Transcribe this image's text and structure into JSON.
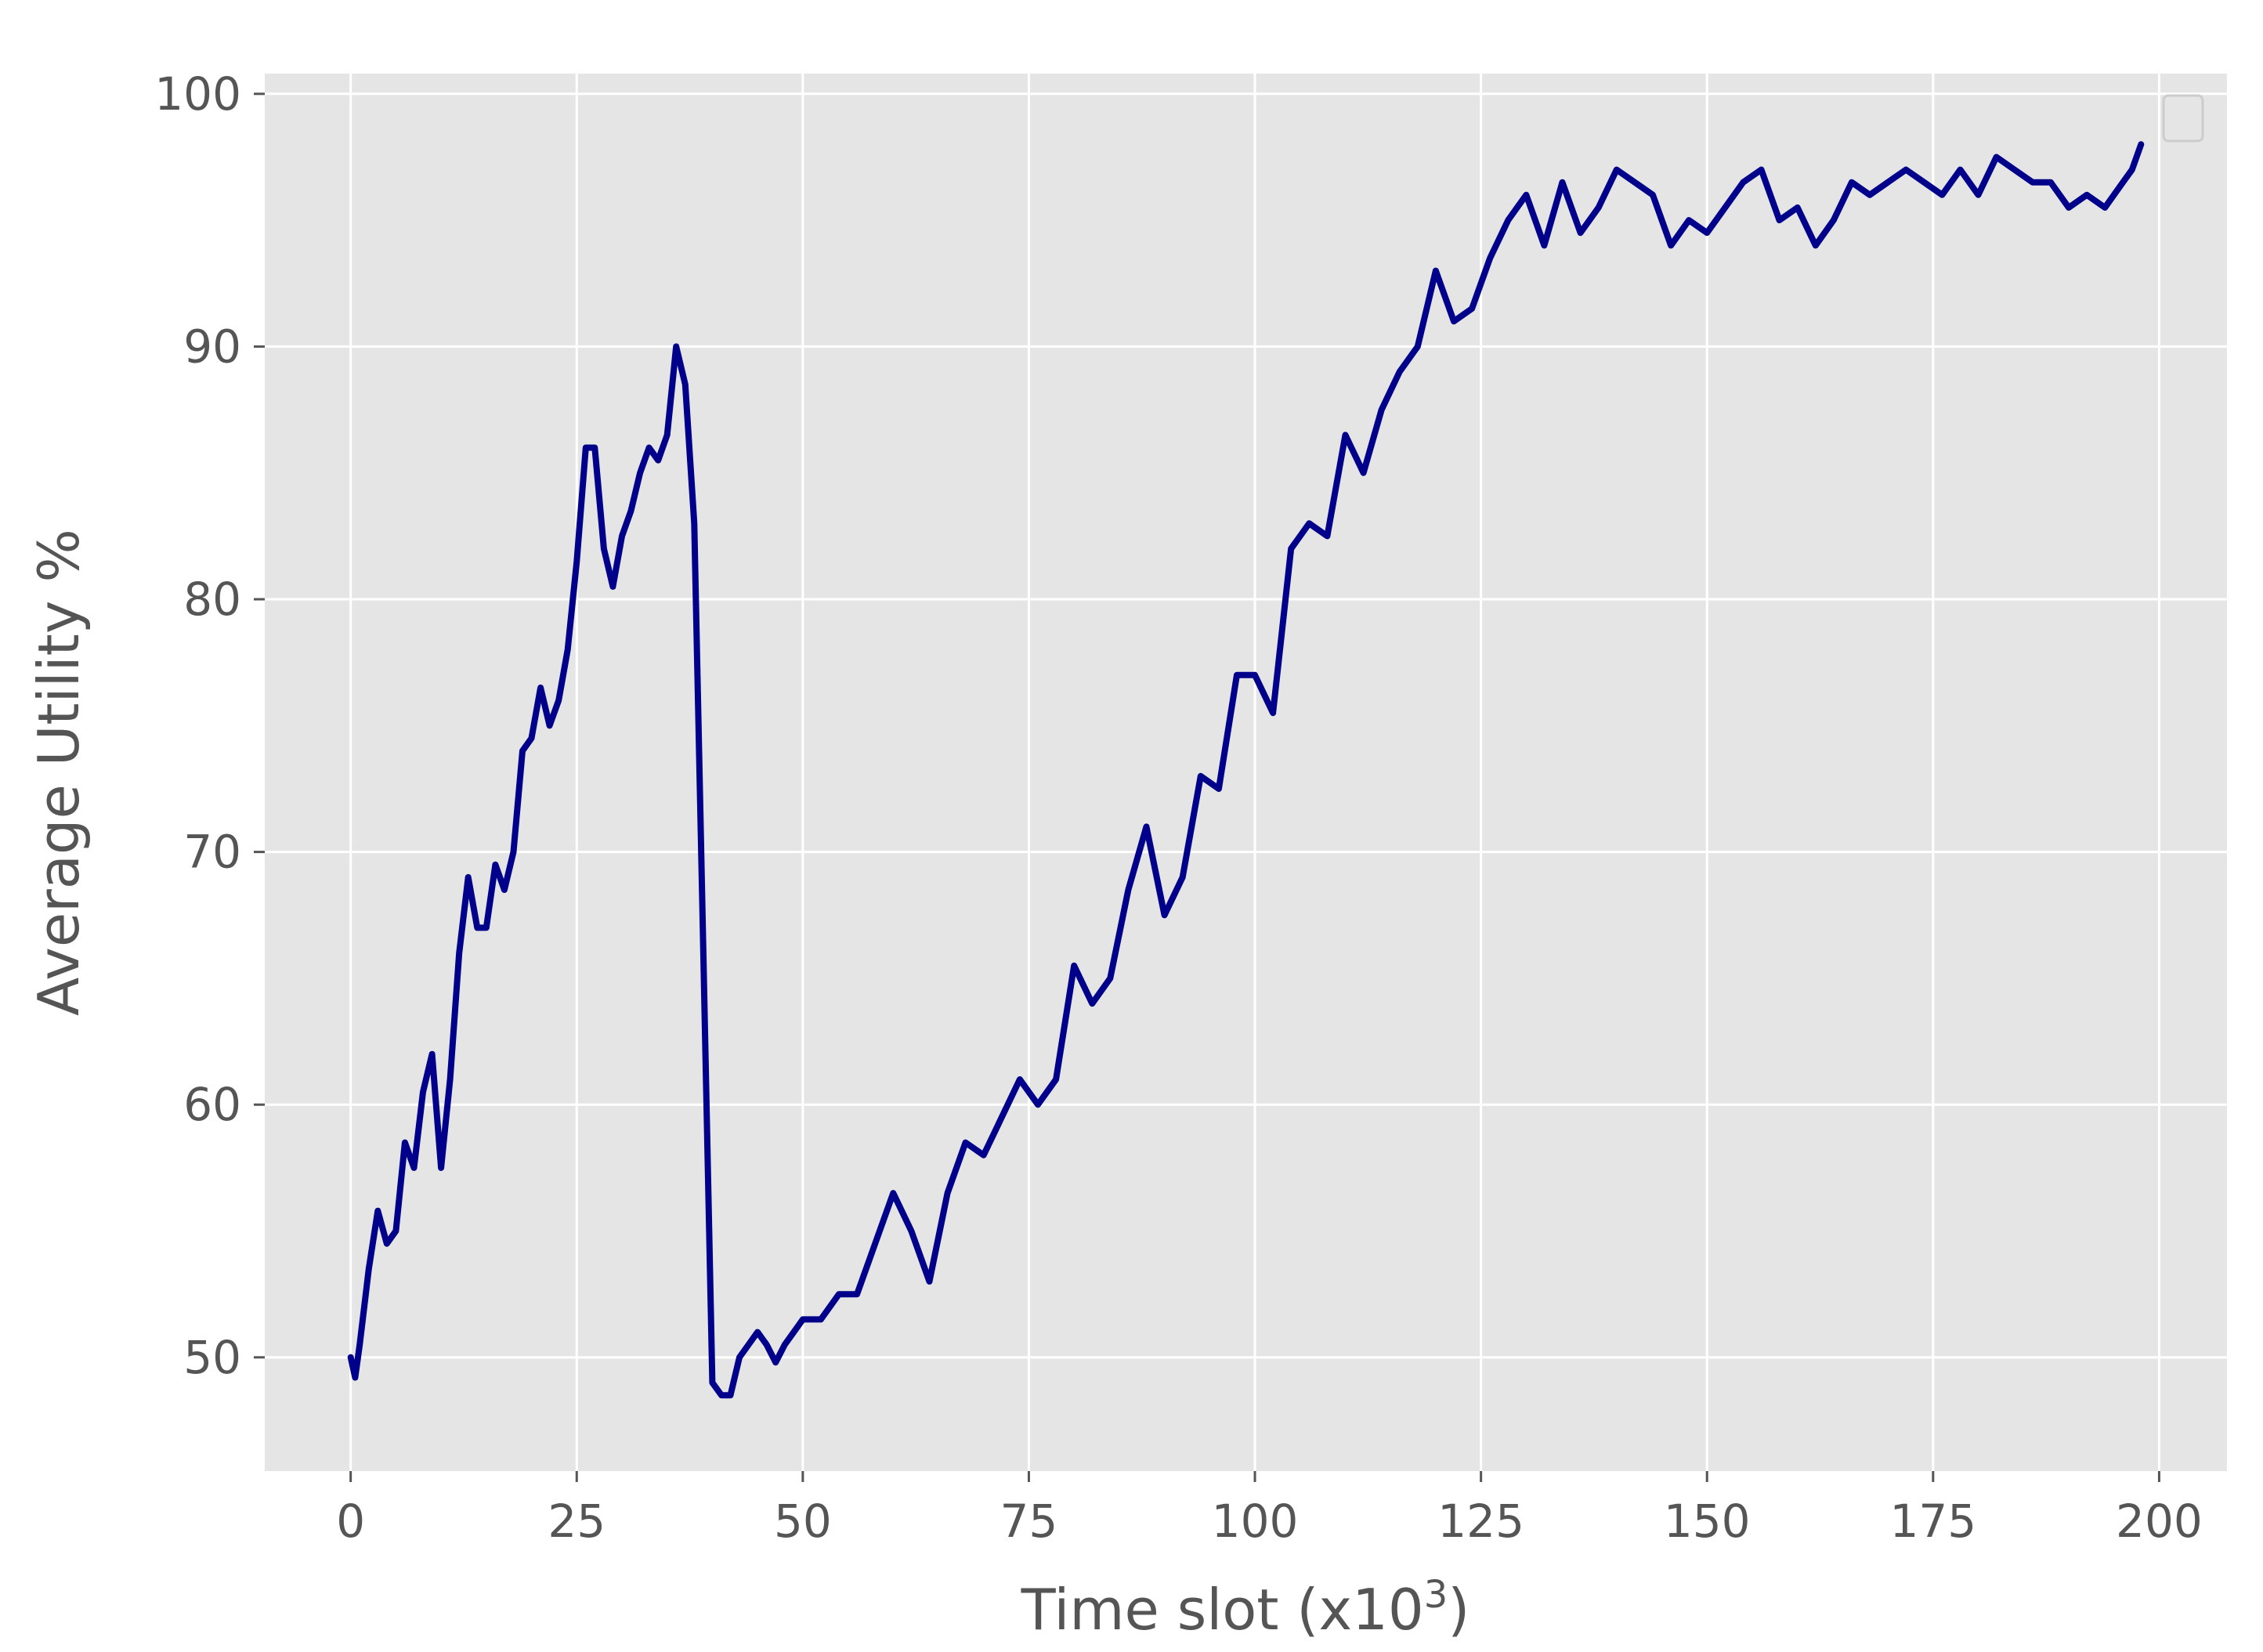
{
  "chart_data": {
    "type": "line",
    "title": "",
    "xlabel": "Time slot (x10",
    "xlabel_sup": "3",
    "xlabel_close": ")",
    "ylabel": "Average Utility %",
    "xlim": [
      -9.5,
      207.5
    ],
    "ylim": [
      45.5,
      100.8
    ],
    "x_ticks": [
      0,
      25,
      50,
      75,
      100,
      125,
      150,
      175,
      200
    ],
    "y_ticks": [
      50,
      60,
      70,
      80,
      90,
      100
    ],
    "x_tick_labels": [
      "0",
      "25",
      "50",
      "75",
      "100",
      "125",
      "150",
      "175",
      "200"
    ],
    "y_tick_labels": [
      "50",
      "60",
      "70",
      "80",
      "90",
      "100"
    ],
    "grid": true,
    "legend": "top-right (empty)",
    "colors": {
      "background": "#e5e5e5",
      "grid": "#ffffff",
      "line": "#00008b",
      "text": "#555555"
    },
    "series": [
      {
        "x": [
          0,
          0.5,
          1,
          2,
          3,
          4,
          5,
          6,
          7,
          8,
          9,
          10,
          11,
          12,
          13,
          14,
          15,
          16,
          17,
          18,
          19,
          20,
          21,
          22,
          23,
          24,
          25,
          26,
          27,
          28,
          29,
          30,
          31,
          32,
          33,
          34,
          35,
          36,
          37,
          38,
          39,
          40,
          41,
          42,
          43,
          44,
          45,
          46,
          47,
          48,
          50,
          52,
          54,
          56,
          58,
          60,
          62,
          64,
          66,
          68,
          70,
          72,
          74,
          76,
          78,
          80,
          82,
          84,
          86,
          88,
          90,
          92,
          94,
          96,
          98,
          100,
          102,
          104,
          106,
          108,
          110,
          112,
          114,
          116,
          118,
          120,
          122,
          124,
          126,
          128,
          130,
          132,
          134,
          136,
          138,
          140,
          142,
          144,
          146,
          148,
          150,
          152,
          154,
          156,
          158,
          160,
          162,
          164,
          166,
          168,
          170,
          172,
          174,
          176,
          178,
          180,
          182,
          184,
          186,
          188,
          190,
          192,
          194,
          196,
          197,
          198
        ],
        "y": [
          50,
          49.2,
          50.5,
          53.5,
          55.8,
          54.5,
          55,
          58.5,
          57.5,
          60.5,
          62,
          57.5,
          61,
          66,
          69,
          67,
          67,
          69.5,
          68.5,
          70,
          74,
          74.5,
          76.5,
          75,
          76,
          78,
          81.5,
          86,
          86,
          82,
          80.5,
          82.5,
          83.5,
          85,
          86,
          85.5,
          86.5,
          90,
          88.5,
          83,
          66,
          49,
          48.5,
          48.5,
          50,
          50.5,
          51,
          50.5,
          49.8,
          50.5,
          51.5,
          51.5,
          52.5,
          52.5,
          54.5,
          56.5,
          55,
          53,
          56.5,
          58.5,
          58,
          59.5,
          61,
          60,
          61,
          65.5,
          64,
          65,
          68.5,
          71,
          67.5,
          69,
          73,
          72.5,
          77,
          77,
          75.5,
          82,
          83,
          82.5,
          86.5,
          85,
          87.5,
          89,
          90,
          93,
          91,
          91.5,
          93.5,
          95,
          96,
          94,
          96.5,
          94.5,
          95.5,
          97,
          96.5,
          96,
          94,
          95,
          94.5,
          95.5,
          96.5,
          97,
          95,
          95.5,
          94,
          95,
          96.5,
          96,
          96.5,
          97,
          96.5,
          96,
          97,
          96,
          97.5,
          97,
          96.5,
          96.5,
          95.5,
          96,
          95.5,
          96.5,
          97,
          98
        ]
      }
    ]
  }
}
